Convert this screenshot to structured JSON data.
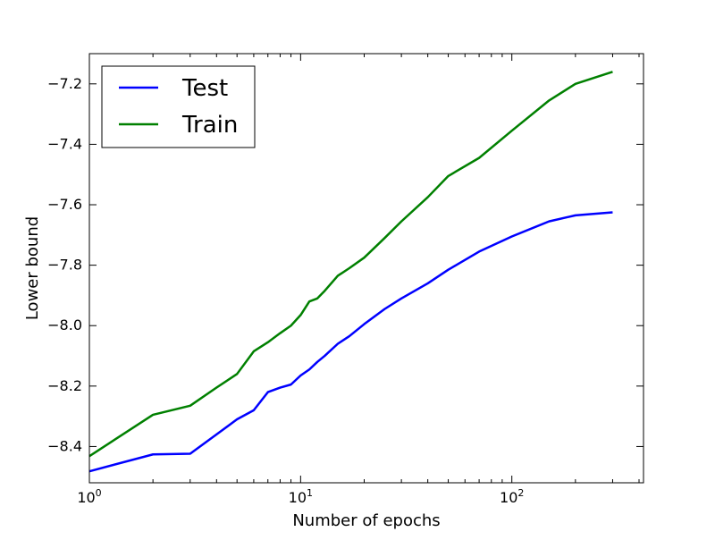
{
  "chart_data": {
    "type": "line",
    "title": "",
    "xlabel": "Number of epochs",
    "ylabel": "Lower bound",
    "xscale": "log",
    "xlim": [
      1,
      420
    ],
    "ylim": [
      -8.52,
      -7.1
    ],
    "grid": false,
    "legend_position": "top-left",
    "x_ticks": [
      {
        "value": 1,
        "base": "10",
        "exp": "0"
      },
      {
        "value": 10,
        "base": "10",
        "exp": "1"
      },
      {
        "value": 100,
        "base": "10",
        "exp": "2"
      }
    ],
    "y_ticks": [
      {
        "value": -8.4,
        "label": "−8.4"
      },
      {
        "value": -8.2,
        "label": "−8.2"
      },
      {
        "value": -8.0,
        "label": "−8.0"
      },
      {
        "value": -7.8,
        "label": "−7.8"
      },
      {
        "value": -7.6,
        "label": "−7.6"
      },
      {
        "value": -7.4,
        "label": "−7.4"
      },
      {
        "value": -7.2,
        "label": "−7.2"
      }
    ],
    "series": [
      {
        "name": "Test",
        "color": "#0000ff",
        "x": [
          1,
          2,
          3,
          4,
          5,
          6,
          7,
          8,
          9,
          10,
          11,
          12,
          13,
          15,
          17,
          20,
          25,
          30,
          40,
          50,
          70,
          100,
          150,
          200,
          300
        ],
        "y": [
          -8.482,
          -8.426,
          -8.424,
          -8.36,
          -8.31,
          -8.28,
          -8.22,
          -8.205,
          -8.195,
          -8.165,
          -8.145,
          -8.12,
          -8.1,
          -8.06,
          -8.035,
          -7.995,
          -7.945,
          -7.91,
          -7.86,
          -7.815,
          -7.755,
          -7.705,
          -7.655,
          -7.635,
          -7.625
        ]
      },
      {
        "name": "Train",
        "color": "#008000",
        "x": [
          1,
          2,
          3,
          4,
          5,
          6,
          7,
          8,
          9,
          10,
          11,
          12,
          13,
          15,
          17,
          20,
          25,
          30,
          40,
          50,
          70,
          100,
          150,
          200,
          300
        ],
        "y": [
          -8.432,
          -8.295,
          -8.265,
          -8.205,
          -8.16,
          -8.085,
          -8.055,
          -8.025,
          -8.0,
          -7.965,
          -7.92,
          -7.91,
          -7.885,
          -7.835,
          -7.81,
          -7.775,
          -7.71,
          -7.655,
          -7.575,
          -7.505,
          -7.445,
          -7.355,
          -7.255,
          -7.2,
          -7.16
        ]
      }
    ]
  }
}
